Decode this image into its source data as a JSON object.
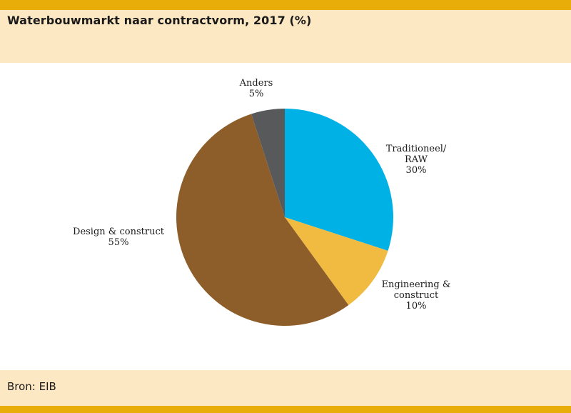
{
  "title": "Waterbouwmarkt naar contractvorm, 2017 (%)",
  "source": "Bron: EIB",
  "colors": {
    "accent_bar": "#e8ad08",
    "panel": "#fde8c4"
  },
  "chart_data": {
    "type": "pie",
    "title": "Waterbouwmarkt naar contractvorm, 2017 (%)",
    "slices": [
      {
        "label_lines": [
          "Traditioneel/",
          "RAW"
        ],
        "value": 30,
        "value_label": "30%",
        "color": "#00b1e6"
      },
      {
        "label_lines": [
          "Engineering &",
          "construct"
        ],
        "value": 10,
        "value_label": "10%",
        "color": "#f0bb40"
      },
      {
        "label_lines": [
          "Design & construct"
        ],
        "value": 55,
        "value_label": "55%",
        "color": "#8e5e2a"
      },
      {
        "label_lines": [
          "Anders"
        ],
        "value": 5,
        "value_label": "5%",
        "color": "#58595b"
      }
    ],
    "start_angle_deg": 0,
    "direction": "clockwise",
    "legend": "none"
  }
}
